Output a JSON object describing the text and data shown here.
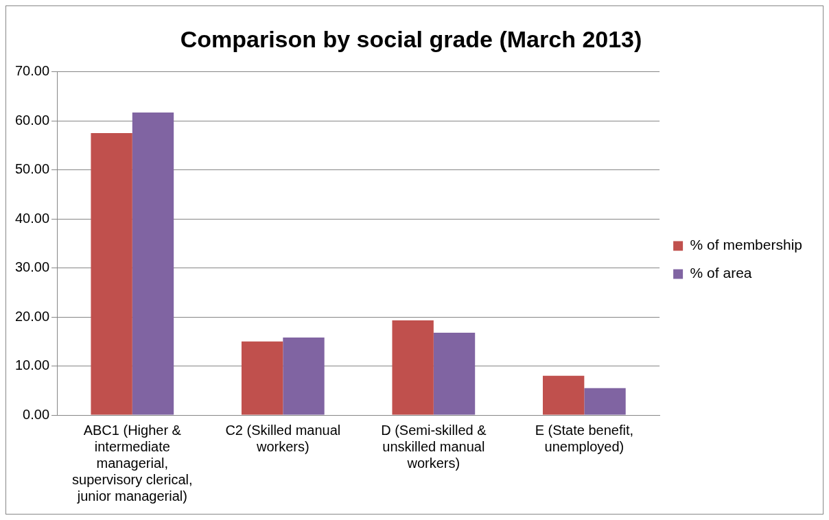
{
  "chart_data": {
    "type": "bar",
    "title": "Comparison by social grade (March 2013)",
    "categories": [
      "ABC1 (Higher & intermediate managerial, supervisory clerical, junior managerial)",
      "C2 (Skilled manual workers)",
      "D (Semi-skilled & unskilled manual workers)",
      "E (State benefit, unemployed)"
    ],
    "series": [
      {
        "name": "% of membership",
        "color": "#c0504d",
        "values": [
          57.5,
          15.0,
          19.3,
          8.0
        ]
      },
      {
        "name": "% of area",
        "color": "#8064a2",
        "values": [
          61.7,
          15.8,
          16.8,
          5.5
        ]
      }
    ],
    "ylim": [
      0,
      70
    ],
    "yticks": [
      {
        "value": 0,
        "label": "0.00"
      },
      {
        "value": 10,
        "label": "10.00"
      },
      {
        "value": 20,
        "label": "20.00"
      },
      {
        "value": 30,
        "label": "30.00"
      },
      {
        "value": 40,
        "label": "40.00"
      },
      {
        "value": 50,
        "label": "50.00"
      },
      {
        "value": 60,
        "label": "60.00"
      },
      {
        "value": 70,
        "label": "70.00"
      }
    ],
    "grid": "y",
    "legend": "right"
  }
}
